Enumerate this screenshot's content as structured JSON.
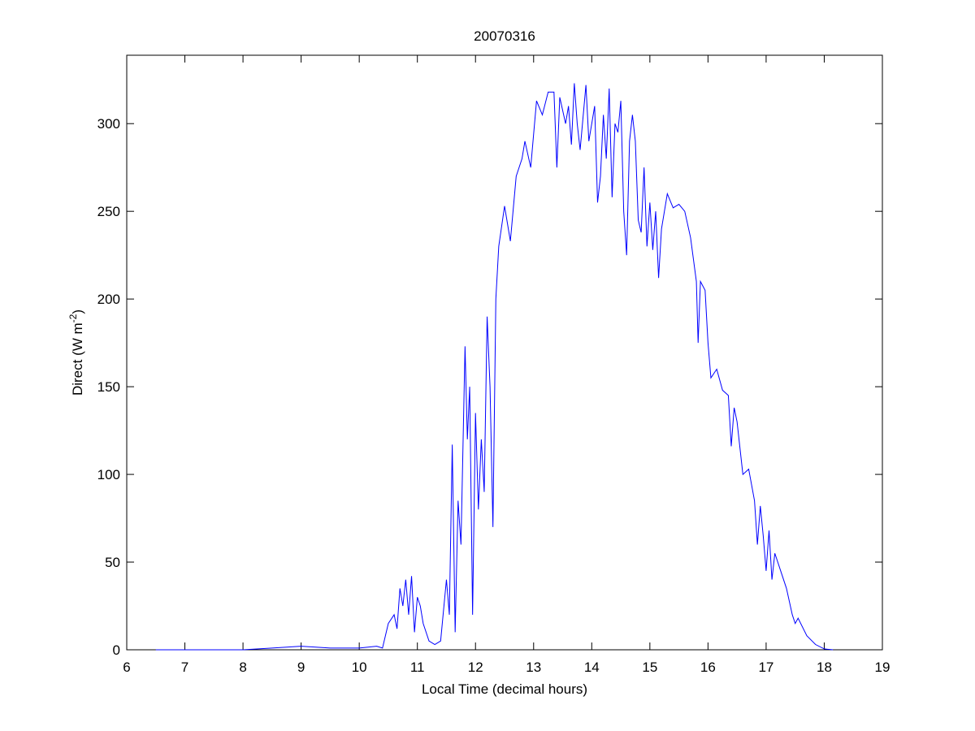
{
  "chart_data": {
    "type": "line",
    "title": "20070316",
    "xlabel": "Local Time (decimal hours)",
    "ylabel": [
      "Direct (W m",
      "-2",
      ")"
    ],
    "xlim": [
      6,
      19
    ],
    "xticks": [
      6,
      7,
      8,
      9,
      10,
      11,
      12,
      13,
      14,
      15,
      16,
      17,
      18,
      19
    ],
    "ylim": [
      0,
      339
    ],
    "yticks": [
      0,
      50,
      100,
      150,
      200,
      250,
      300
    ],
    "grid": false,
    "series": [
      {
        "color": "#0000ff",
        "x": [
          6.5,
          7,
          7.5,
          8,
          8.5,
          9,
          9.5,
          10,
          10.3,
          10.4,
          10.5,
          10.6,
          10.65,
          10.7,
          10.75,
          10.8,
          10.85,
          10.9,
          10.95,
          11.0,
          11.05,
          11.1,
          11.2,
          11.3,
          11.4,
          11.5,
          11.55,
          11.6,
          11.65,
          11.7,
          11.75,
          11.82,
          11.86,
          11.9,
          11.95,
          12.0,
          12.05,
          12.1,
          12.15,
          12.2,
          12.25,
          12.3,
          12.35,
          12.4,
          12.5,
          12.6,
          12.7,
          12.8,
          12.85,
          12.95,
          13.05,
          13.15,
          13.25,
          13.35,
          13.4,
          13.45,
          13.55,
          13.6,
          13.65,
          13.7,
          13.75,
          13.8,
          13.9,
          13.95,
          14.05,
          14.1,
          14.15,
          14.2,
          14.25,
          14.3,
          14.35,
          14.4,
          14.45,
          14.5,
          14.55,
          14.6,
          14.65,
          14.7,
          14.75,
          14.8,
          14.85,
          14.9,
          14.95,
          15.0,
          15.05,
          15.1,
          15.15,
          15.2,
          15.3,
          15.4,
          15.5,
          15.6,
          15.7,
          15.8,
          15.83,
          15.87,
          15.95,
          16.0,
          16.05,
          16.15,
          16.25,
          16.35,
          16.4,
          16.45,
          16.5,
          16.6,
          16.7,
          16.8,
          16.85,
          16.9,
          16.95,
          17.0,
          17.05,
          17.1,
          17.15,
          17.25,
          17.35,
          17.45,
          17.5,
          17.55,
          17.7,
          17.85,
          18.0,
          18.15
        ],
        "values": [
          0,
          0,
          0,
          0,
          1,
          2,
          1,
          1,
          2,
          1,
          15,
          20,
          12,
          35,
          25,
          40,
          20,
          42,
          10,
          30,
          25,
          15,
          5,
          3,
          5,
          40,
          20,
          117,
          10,
          85,
          60,
          173,
          120,
          150,
          20,
          135,
          80,
          120,
          90,
          190,
          150,
          70,
          200,
          230,
          253,
          233,
          270,
          280,
          290,
          275,
          313,
          305,
          318,
          318,
          275,
          315,
          300,
          310,
          288,
          323,
          300,
          285,
          322,
          290,
          310,
          255,
          270,
          305,
          280,
          320,
          258,
          300,
          295,
          313,
          250,
          225,
          290,
          305,
          290,
          245,
          238,
          275,
          230,
          255,
          228,
          250,
          212,
          240,
          260,
          252,
          254,
          250,
          235,
          210,
          175,
          210,
          205,
          175,
          155,
          160,
          148,
          145,
          116,
          138,
          130,
          100,
          103,
          85,
          60,
          82,
          65,
          45,
          68,
          40,
          55,
          45,
          35,
          20,
          15,
          18,
          8,
          3,
          0.5,
          0
        ]
      }
    ]
  }
}
